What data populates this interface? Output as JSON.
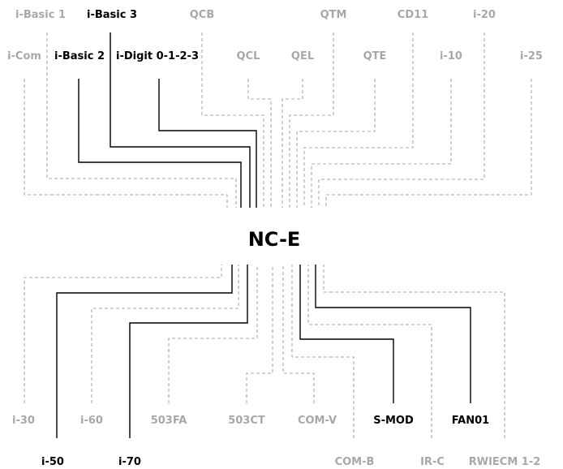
{
  "center_label": "NC-E",
  "colors": {
    "active": "#000000",
    "inactive": "#a8a8a8"
  },
  "nodes": [
    {
      "id": "i-basic-1",
      "label": "i-Basic 1",
      "active": false
    },
    {
      "id": "i-basic-3",
      "label": "i-Basic 3",
      "active": true
    },
    {
      "id": "qcb",
      "label": "QCB",
      "active": false
    },
    {
      "id": "qtm",
      "label": "QTM",
      "active": false
    },
    {
      "id": "cd11",
      "label": "CD11",
      "active": false
    },
    {
      "id": "i-20",
      "label": "i-20",
      "active": false
    },
    {
      "id": "i-com",
      "label": "i-Com",
      "active": false
    },
    {
      "id": "i-basic-2",
      "label": "i-Basic 2",
      "active": true
    },
    {
      "id": "i-digit",
      "label": "i-Digit 0-1-2-3",
      "active": true
    },
    {
      "id": "qcl",
      "label": "QCL",
      "active": false
    },
    {
      "id": "qel",
      "label": "QEL",
      "active": false
    },
    {
      "id": "qte",
      "label": "QTE",
      "active": false
    },
    {
      "id": "i-10",
      "label": "i-10",
      "active": false
    },
    {
      "id": "i-25",
      "label": "i-25",
      "active": false
    },
    {
      "id": "i-30",
      "label": "i-30",
      "active": false
    },
    {
      "id": "i-60",
      "label": "i-60",
      "active": false
    },
    {
      "id": "503fa",
      "label": "503FA",
      "active": false
    },
    {
      "id": "503ct",
      "label": "503CT",
      "active": false
    },
    {
      "id": "com-v",
      "label": "COM-V",
      "active": false
    },
    {
      "id": "s-mod",
      "label": "S-MOD",
      "active": true
    },
    {
      "id": "fan01",
      "label": "FAN01",
      "active": true
    },
    {
      "id": "i-50",
      "label": "i-50",
      "active": true
    },
    {
      "id": "i-70",
      "label": "i-70",
      "active": true
    },
    {
      "id": "com-b",
      "label": "COM-B",
      "active": false
    },
    {
      "id": "ir-c",
      "label": "IR-C",
      "active": false
    },
    {
      "id": "rwiecm",
      "label": "RWIECM 1-2",
      "active": false
    }
  ]
}
